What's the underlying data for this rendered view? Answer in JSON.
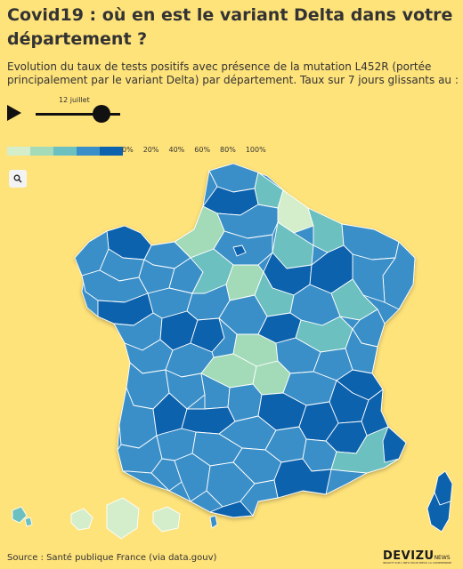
{
  "title": "Covid19 : où en est le variant Delta dans votre département ?",
  "subtitle": "Evolution du taux de tests positifs avec présence de la mutation L452R (portée principalement par le variant Delta) par département. Taux sur 7 jours glissants au :",
  "player": {
    "date_label": "12 juillet",
    "play_icon": "play-icon",
    "slider_position": 0.78
  },
  "legend": {
    "colors": [
      "#d4eecb",
      "#a3dbb8",
      "#6cc0c0",
      "#3b8fc8",
      "#0d62ad"
    ],
    "labels": [
      "0%",
      "20%",
      "40%",
      "60%",
      "80%",
      "100%"
    ]
  },
  "zoom_icon": "search-icon",
  "source": "Source : Santé publique France (via data.gouv)",
  "logo": {
    "word": "DEVIZU",
    "suffix": "NEWS",
    "tagline": "INSIGHT SUR L'INFO POUR MIEUX LA COMPRENDRE"
  }
}
